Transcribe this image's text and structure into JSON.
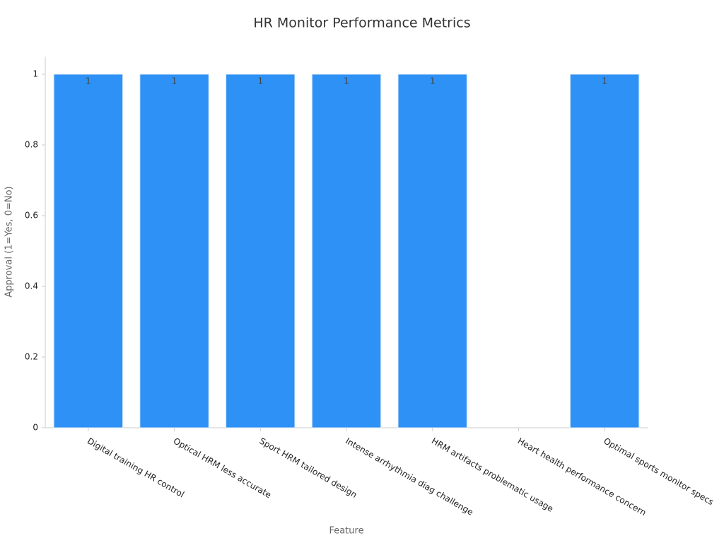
{
  "chart_data": {
    "type": "bar",
    "title": "HR Monitor Performance Metrics",
    "x_label": "Feature",
    "y_label": "Approval (1=Yes, 0=No)",
    "categories": [
      "Digital training HR control",
      "Optical HRM less accurate",
      "Sport HRM tailored design",
      "Intense arrhythmia diag challenge",
      "HRM artifacts problematic usage",
      "Heart health performance concern",
      "Optimal sports monitor specs"
    ],
    "values": [
      1,
      1,
      1,
      1,
      1,
      0,
      1
    ],
    "color": "#2e91f5",
    "ylim": [
      0,
      1.05
    ],
    "yticks": [
      0,
      0.2,
      0.4,
      0.6,
      0.8,
      1
    ],
    "grid": false
  }
}
